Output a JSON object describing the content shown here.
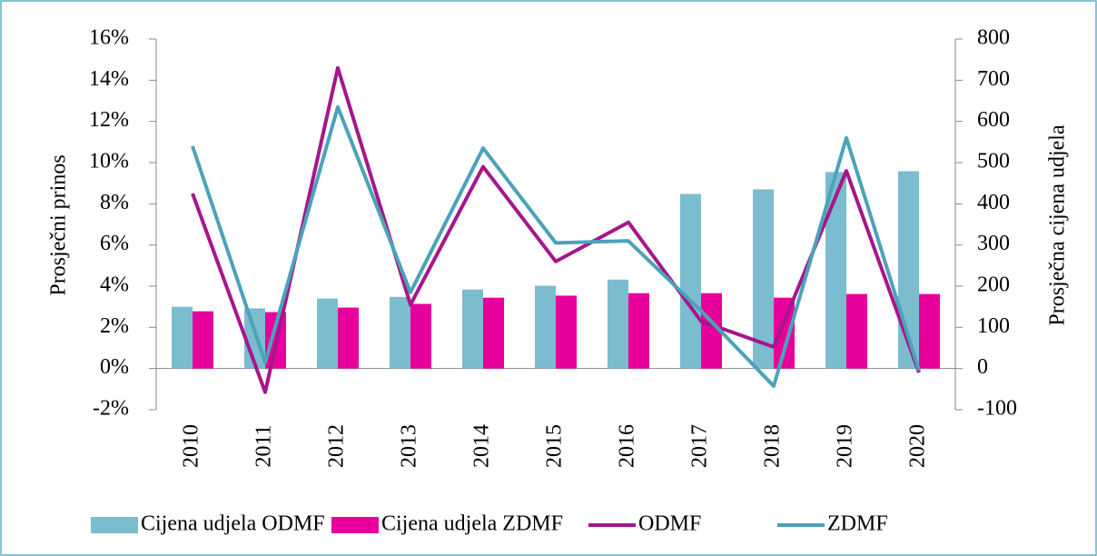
{
  "chart_data": {
    "type": "bar",
    "categories": [
      "2010",
      "2011",
      "2012",
      "2013",
      "2014",
      "2015",
      "2016",
      "2017",
      "2018",
      "2019",
      "2020"
    ],
    "series": [
      {
        "name": "Cijena udjela ODMF",
        "type": "bar",
        "axis": "y2",
        "color": "#7bbccf",
        "values": [
          150,
          146,
          170,
          174,
          192,
          201,
          216,
          424,
          435,
          477,
          479
        ]
      },
      {
        "name": "Cijena udjela ZDMF",
        "type": "bar",
        "axis": "y2",
        "color": "#e8009c",
        "values": [
          139,
          137,
          148,
          157,
          172,
          177,
          183,
          183,
          172,
          181,
          181
        ]
      },
      {
        "name": "ODMF",
        "type": "line",
        "color": "#a6168c",
        "values": [
          8.5,
          -1.15,
          14.6,
          3.1,
          9.8,
          5.2,
          7.1,
          2.3,
          1.05,
          9.6,
          -0.2
        ]
      },
      {
        "name": "ZDMF",
        "type": "line",
        "color": "#4ba3b9",
        "values": [
          10.8,
          0.3,
          12.7,
          3.7,
          10.7,
          6.1,
          6.2,
          2.8,
          -0.85,
          11.2,
          -0.1
        ]
      }
    ],
    "ylabel": "Prosječni prinos",
    "y2label": "Prosječna cijena udjela",
    "ylim": [
      -2,
      16
    ],
    "yticks": [
      {
        "value": -2,
        "label": "-2%"
      },
      {
        "value": 0,
        "label": "0%"
      },
      {
        "value": 2,
        "label": "2%"
      },
      {
        "value": 4,
        "label": "4%"
      },
      {
        "value": 6,
        "label": "6%"
      },
      {
        "value": 8,
        "label": "8%"
      },
      {
        "value": 10,
        "label": "10%"
      },
      {
        "value": 12,
        "label": "12%"
      },
      {
        "value": 14,
        "label": "14%"
      },
      {
        "value": 16,
        "label": "16%"
      }
    ],
    "y2lim": [
      -100,
      800
    ],
    "y2ticks": [
      -100,
      0,
      100,
      200,
      300,
      400,
      500,
      600,
      700,
      800
    ],
    "legend": "bottom"
  }
}
